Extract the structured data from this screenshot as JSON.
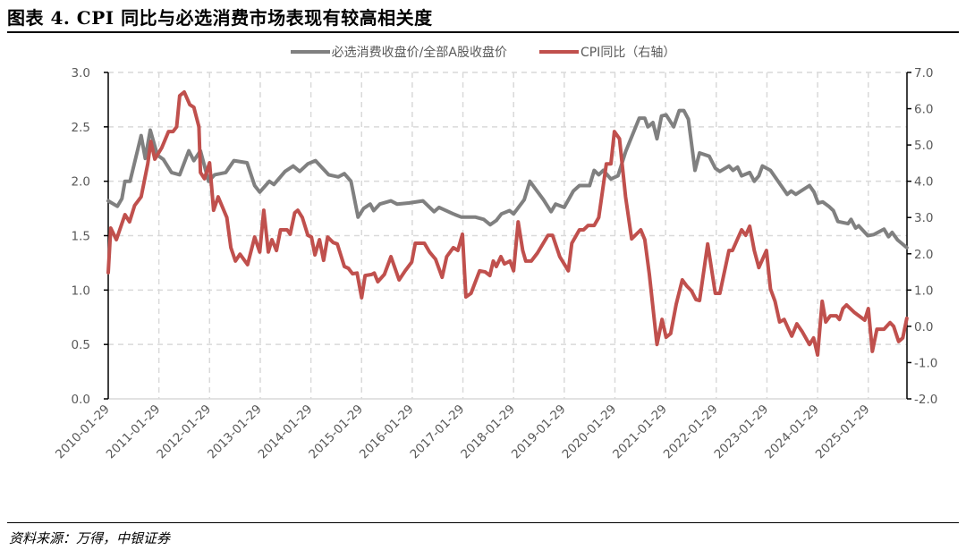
{
  "title": "图表 4. CPI 同比与必选消费市场表现有较高相关度",
  "source": "资料来源：万得，中银证券",
  "colors": {
    "gray_series": "#808080",
    "red_series": "#C0504D",
    "grid": "#D9D9D9",
    "axis": "#000000"
  },
  "chart_data": {
    "type": "line",
    "title": "图表 4. CPI 同比与必选消费市场表现有较高相关度",
    "xlabel": "",
    "ylabel_left": "",
    "ylabel_right": "",
    "x_unit": "decimal year",
    "x_range": [
      2010.0,
      2025.76
    ],
    "x_tick_labels": [
      "2010-01-29",
      "2011-01-29",
      "2012-01-29",
      "2013-01-29",
      "2014-01-29",
      "2015-01-29",
      "2016-01-29",
      "2017-01-29",
      "2018-01-29",
      "2019-01-29",
      "2020-01-29",
      "2021-01-29",
      "2022-01-29",
      "2023-01-29",
      "2024-01-29",
      "2025-01-29"
    ],
    "ylim_left": [
      0,
      3.0
    ],
    "ylim_right": [
      -2.0,
      7.0
    ],
    "y_ticks_left": [
      "0.0",
      "0.5",
      "1.0",
      "1.5",
      "2.0",
      "2.5",
      "3.0"
    ],
    "y_ticks_right": [
      "-2.0",
      "-1.0",
      "0.0",
      "1.0",
      "2.0",
      "3.0",
      "4.0",
      "5.0",
      "6.0",
      "7.0"
    ],
    "grid": true,
    "legend_position": "top-center",
    "series": [
      {
        "name": "必选消费收盘价/全部A股收盘价",
        "axis": "left",
        "color": "#808080",
        "points": [
          [
            2010.0,
            1.82
          ],
          [
            2010.18,
            1.77
          ],
          [
            2010.27,
            1.84
          ],
          [
            2010.33,
            2.0
          ],
          [
            2010.43,
            2.0
          ],
          [
            2010.65,
            2.42
          ],
          [
            2010.73,
            2.21
          ],
          [
            2010.83,
            2.47
          ],
          [
            2010.97,
            2.24
          ],
          [
            2011.09,
            2.2
          ],
          [
            2011.25,
            2.08
          ],
          [
            2011.41,
            2.06
          ],
          [
            2011.59,
            2.28
          ],
          [
            2011.69,
            2.19
          ],
          [
            2011.82,
            2.28
          ],
          [
            2011.98,
            2.0
          ],
          [
            2012.1,
            2.06
          ],
          [
            2012.32,
            2.08
          ],
          [
            2012.48,
            2.19
          ],
          [
            2012.74,
            2.17
          ],
          [
            2012.89,
            1.96
          ],
          [
            2012.99,
            1.9
          ],
          [
            2013.18,
            2.0
          ],
          [
            2013.27,
            1.97
          ],
          [
            2013.49,
            2.09
          ],
          [
            2013.65,
            2.14
          ],
          [
            2013.78,
            2.09
          ],
          [
            2013.94,
            2.16
          ],
          [
            2014.09,
            2.19
          ],
          [
            2014.35,
            2.06
          ],
          [
            2014.54,
            2.04
          ],
          [
            2014.66,
            2.07
          ],
          [
            2014.79,
            2.0
          ],
          [
            2014.93,
            1.67
          ],
          [
            2015.04,
            1.75
          ],
          [
            2015.17,
            1.79
          ],
          [
            2015.24,
            1.73
          ],
          [
            2015.36,
            1.79
          ],
          [
            2015.58,
            1.82
          ],
          [
            2015.7,
            1.79
          ],
          [
            2015.93,
            1.8
          ],
          [
            2016.21,
            1.82
          ],
          [
            2016.43,
            1.72
          ],
          [
            2016.53,
            1.76
          ],
          [
            2016.81,
            1.7
          ],
          [
            2016.97,
            1.67
          ],
          [
            2017.25,
            1.67
          ],
          [
            2017.41,
            1.65
          ],
          [
            2017.54,
            1.6
          ],
          [
            2017.66,
            1.64
          ],
          [
            2017.76,
            1.7
          ],
          [
            2017.92,
            1.73
          ],
          [
            2018.0,
            1.7
          ],
          [
            2018.21,
            1.83
          ],
          [
            2018.32,
            2.0
          ],
          [
            2018.59,
            1.83
          ],
          [
            2018.74,
            1.72
          ],
          [
            2018.83,
            1.79
          ],
          [
            2019.0,
            1.76
          ],
          [
            2019.18,
            1.91
          ],
          [
            2019.3,
            1.96
          ],
          [
            2019.5,
            1.96
          ],
          [
            2019.59,
            2.1
          ],
          [
            2019.68,
            2.06
          ],
          [
            2019.77,
            2.1
          ],
          [
            2019.92,
            2.02
          ],
          [
            2020.06,
            2.05
          ],
          [
            2020.21,
            2.27
          ],
          [
            2020.48,
            2.58
          ],
          [
            2020.59,
            2.58
          ],
          [
            2020.65,
            2.5
          ],
          [
            2020.75,
            2.54
          ],
          [
            2020.83,
            2.39
          ],
          [
            2020.92,
            2.6
          ],
          [
            2021.01,
            2.61
          ],
          [
            2021.16,
            2.5
          ],
          [
            2021.27,
            2.65
          ],
          [
            2021.36,
            2.65
          ],
          [
            2021.45,
            2.57
          ],
          [
            2021.58,
            2.1
          ],
          [
            2021.67,
            2.26
          ],
          [
            2021.86,
            2.23
          ],
          [
            2021.98,
            2.12
          ],
          [
            2022.07,
            2.09
          ],
          [
            2022.25,
            2.14
          ],
          [
            2022.33,
            2.1
          ],
          [
            2022.42,
            2.13
          ],
          [
            2022.5,
            2.05
          ],
          [
            2022.66,
            2.08
          ],
          [
            2022.75,
            2.0
          ],
          [
            2022.84,
            2.05
          ],
          [
            2022.91,
            2.14
          ],
          [
            2023.07,
            2.1
          ],
          [
            2023.25,
            1.98
          ],
          [
            2023.4,
            1.88
          ],
          [
            2023.48,
            1.91
          ],
          [
            2023.57,
            1.88
          ],
          [
            2023.84,
            1.96
          ],
          [
            2023.93,
            1.9
          ],
          [
            2024.01,
            1.8
          ],
          [
            2024.1,
            1.81
          ],
          [
            2024.22,
            1.77
          ],
          [
            2024.31,
            1.73
          ],
          [
            2024.4,
            1.63
          ],
          [
            2024.6,
            1.61
          ],
          [
            2024.66,
            1.65
          ],
          [
            2024.75,
            1.57
          ],
          [
            2024.81,
            1.59
          ],
          [
            2024.99,
            1.5
          ],
          [
            2025.11,
            1.51
          ],
          [
            2025.31,
            1.56
          ],
          [
            2025.4,
            1.49
          ],
          [
            2025.47,
            1.53
          ],
          [
            2025.58,
            1.46
          ],
          [
            2025.76,
            1.39
          ]
        ]
      },
      {
        "name": "CPI同比（右轴）",
        "axis": "right",
        "color": "#C0504D",
        "points": [
          [
            2010.0,
            1.48
          ],
          [
            2010.05,
            2.71
          ],
          [
            2010.16,
            2.39
          ],
          [
            2010.33,
            3.08
          ],
          [
            2010.42,
            2.88
          ],
          [
            2010.52,
            3.33
          ],
          [
            2010.65,
            3.57
          ],
          [
            2010.78,
            4.48
          ],
          [
            2010.84,
            5.1
          ],
          [
            2010.92,
            4.61
          ],
          [
            2011.06,
            4.93
          ],
          [
            2011.19,
            5.37
          ],
          [
            2011.28,
            5.37
          ],
          [
            2011.35,
            5.5
          ],
          [
            2011.41,
            6.36
          ],
          [
            2011.5,
            6.46
          ],
          [
            2011.61,
            6.11
          ],
          [
            2011.69,
            6.04
          ],
          [
            2011.79,
            5.5
          ],
          [
            2011.82,
            4.24
          ],
          [
            2011.9,
            4.07
          ],
          [
            2012.0,
            4.51
          ],
          [
            2012.08,
            3.2
          ],
          [
            2012.17,
            3.57
          ],
          [
            2012.34,
            3.0
          ],
          [
            2012.42,
            2.17
          ],
          [
            2012.51,
            1.8
          ],
          [
            2012.6,
            1.99
          ],
          [
            2012.75,
            1.7
          ],
          [
            2012.89,
            2.46
          ],
          [
            2012.99,
            2.05
          ],
          [
            2013.07,
            3.2
          ],
          [
            2013.16,
            2.05
          ],
          [
            2013.23,
            2.39
          ],
          [
            2013.32,
            2.09
          ],
          [
            2013.4,
            2.66
          ],
          [
            2013.53,
            2.66
          ],
          [
            2013.59,
            2.54
          ],
          [
            2013.68,
            3.13
          ],
          [
            2013.74,
            3.2
          ],
          [
            2013.83,
            3.0
          ],
          [
            2013.94,
            2.51
          ],
          [
            2014.01,
            2.46
          ],
          [
            2014.08,
            1.97
          ],
          [
            2014.17,
            2.39
          ],
          [
            2014.25,
            1.82
          ],
          [
            2014.33,
            2.46
          ],
          [
            2014.44,
            2.31
          ],
          [
            2014.52,
            2.27
          ],
          [
            2014.66,
            1.65
          ],
          [
            2014.74,
            1.6
          ],
          [
            2014.82,
            1.45
          ],
          [
            2014.91,
            1.47
          ],
          [
            2015.0,
            0.79
          ],
          [
            2015.07,
            1.4
          ],
          [
            2015.2,
            1.43
          ],
          [
            2015.25,
            1.47
          ],
          [
            2015.32,
            1.23
          ],
          [
            2015.45,
            1.43
          ],
          [
            2015.58,
            1.92
          ],
          [
            2015.74,
            1.28
          ],
          [
            2015.86,
            1.53
          ],
          [
            2015.99,
            1.77
          ],
          [
            2016.06,
            2.29
          ],
          [
            2016.24,
            2.29
          ],
          [
            2016.34,
            2.05
          ],
          [
            2016.46,
            1.85
          ],
          [
            2016.59,
            1.35
          ],
          [
            2016.68,
            1.92
          ],
          [
            2016.81,
            2.17
          ],
          [
            2016.9,
            2.09
          ],
          [
            2016.99,
            2.54
          ],
          [
            2017.06,
            0.81
          ],
          [
            2017.16,
            0.91
          ],
          [
            2017.33,
            1.53
          ],
          [
            2017.44,
            1.5
          ],
          [
            2017.53,
            1.4
          ],
          [
            2017.6,
            1.8
          ],
          [
            2017.66,
            1.65
          ],
          [
            2017.75,
            1.92
          ],
          [
            2017.82,
            1.72
          ],
          [
            2017.93,
            1.8
          ],
          [
            2018.0,
            1.53
          ],
          [
            2018.09,
            2.88
          ],
          [
            2018.18,
            2.09
          ],
          [
            2018.24,
            1.8
          ],
          [
            2018.35,
            1.8
          ],
          [
            2018.47,
            2.02
          ],
          [
            2018.68,
            2.51
          ],
          [
            2018.77,
            2.51
          ],
          [
            2018.91,
            1.92
          ],
          [
            2019.08,
            1.53
          ],
          [
            2019.15,
            2.29
          ],
          [
            2019.3,
            2.66
          ],
          [
            2019.38,
            2.66
          ],
          [
            2019.47,
            2.78
          ],
          [
            2019.59,
            2.78
          ],
          [
            2019.68,
            3.0
          ],
          [
            2019.83,
            4.48
          ],
          [
            2019.92,
            4.48
          ],
          [
            2019.99,
            5.37
          ],
          [
            2020.09,
            5.17
          ],
          [
            2020.21,
            3.57
          ],
          [
            2020.33,
            2.41
          ],
          [
            2020.51,
            2.66
          ],
          [
            2020.59,
            2.39
          ],
          [
            2020.68,
            1.43
          ],
          [
            2020.83,
            -0.5
          ],
          [
            2020.93,
            0.19
          ],
          [
            2021.01,
            -0.3
          ],
          [
            2021.1,
            -0.2
          ],
          [
            2021.21,
            0.61
          ],
          [
            2021.33,
            1.28
          ],
          [
            2021.42,
            1.11
          ],
          [
            2021.51,
            0.98
          ],
          [
            2021.6,
            0.74
          ],
          [
            2021.67,
            0.71
          ],
          [
            2021.83,
            2.27
          ],
          [
            2021.98,
            0.91
          ],
          [
            2022.07,
            0.91
          ],
          [
            2022.25,
            2.09
          ],
          [
            2022.32,
            2.09
          ],
          [
            2022.5,
            2.66
          ],
          [
            2022.58,
            2.51
          ],
          [
            2022.66,
            2.76
          ],
          [
            2022.75,
            2.09
          ],
          [
            2022.84,
            1.62
          ],
          [
            2022.99,
            2.09
          ],
          [
            2023.07,
            1.03
          ],
          [
            2023.16,
            0.69
          ],
          [
            2023.25,
            0.12
          ],
          [
            2023.34,
            0.19
          ],
          [
            2023.49,
            -0.27
          ],
          [
            2023.59,
            0.07
          ],
          [
            2023.69,
            -0.13
          ],
          [
            2023.84,
            -0.5
          ],
          [
            2023.92,
            -0.32
          ],
          [
            2024.0,
            -0.79
          ],
          [
            2024.09,
            0.69
          ],
          [
            2024.16,
            0.12
          ],
          [
            2024.25,
            0.29
          ],
          [
            2024.37,
            0.29
          ],
          [
            2024.43,
            0.19
          ],
          [
            2024.5,
            0.49
          ],
          [
            2024.57,
            0.59
          ],
          [
            2024.72,
            0.39
          ],
          [
            2024.93,
            0.17
          ],
          [
            2025.0,
            0.49
          ],
          [
            2025.08,
            -0.69
          ],
          [
            2025.17,
            -0.08
          ],
          [
            2025.31,
            -0.08
          ],
          [
            2025.43,
            0.1
          ],
          [
            2025.5,
            0.0
          ],
          [
            2025.6,
            -0.42
          ],
          [
            2025.68,
            -0.32
          ],
          [
            2025.76,
            0.22
          ]
        ]
      }
    ]
  }
}
